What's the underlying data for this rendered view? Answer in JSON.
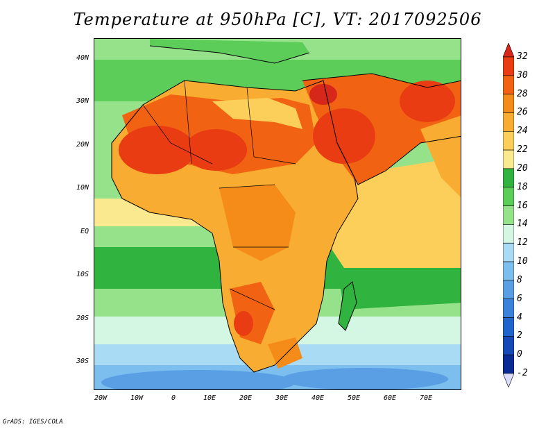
{
  "title": "Temperature at 950hPa [C], VT: 2017092506",
  "credit": "GrADS: IGES/COLA",
  "map": {
    "lon_range": [
      -22,
      80
    ],
    "lat_range": [
      -37,
      46
    ],
    "lat_ticks": [
      "40N",
      "30N",
      "20N",
      "10N",
      "EQ",
      "10S",
      "20S",
      "30S"
    ],
    "lon_ticks": [
      "20W",
      "10W",
      "0",
      "10E",
      "20E",
      "30E",
      "40E",
      "50E",
      "60E",
      "70E"
    ]
  },
  "colorbar": {
    "labels": [
      "32",
      "30",
      "28",
      "26",
      "24",
      "22",
      "20",
      "18",
      "16",
      "14",
      "12",
      "10",
      "8",
      "6",
      "4",
      "2",
      "0",
      "-2"
    ],
    "colors": [
      "#d7261a",
      "#ea3c12",
      "#f16312",
      "#f58b18",
      "#f8ad32",
      "#fbcf5a",
      "#fbe990",
      "#31b340",
      "#5ccd58",
      "#95e28a",
      "#d4f7e4",
      "#a9dcf4",
      "#7cbeee",
      "#5a9ee4",
      "#3c81db",
      "#2165cc",
      "#1549b8",
      "#0a2a94",
      "#dcdcff"
    ]
  }
}
